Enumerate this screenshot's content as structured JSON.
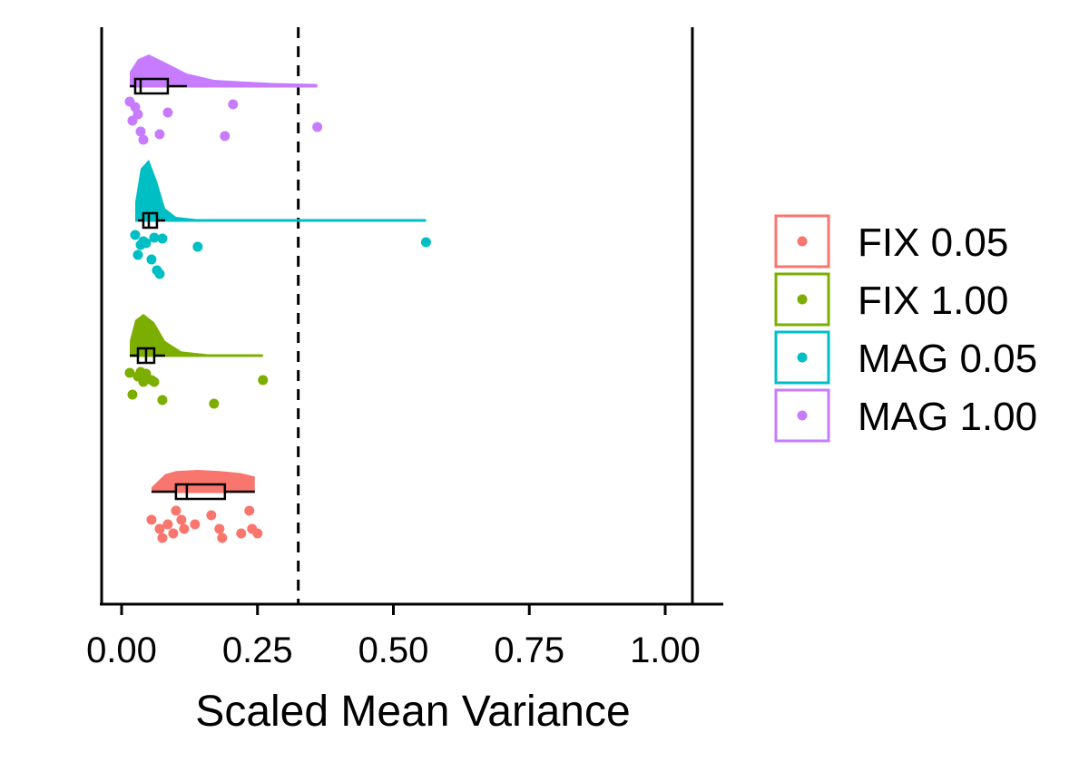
{
  "chart_data": {
    "type": "raincloud",
    "xlabel": "Scaled Mean Variance",
    "xlim": [
      -0.04,
      1.1
    ],
    "x_ticks": [
      0.0,
      0.25,
      0.5,
      0.75,
      1.0
    ],
    "x_tick_labels": [
      "0.00",
      "0.25",
      "0.50",
      "0.75",
      "1.00"
    ],
    "reference_lines": [
      {
        "x": 0.325,
        "style": "dashed",
        "color": "#000000"
      },
      {
        "x": 1.05,
        "style": "solid",
        "color": "#000000"
      }
    ],
    "legend_position": "right",
    "series": [
      {
        "name": "FIX 0.05",
        "color": "#F8766D",
        "points": [
          0.055,
          0.07,
          0.075,
          0.085,
          0.095,
          0.1,
          0.11,
          0.115,
          0.135,
          0.165,
          0.18,
          0.185,
          0.22,
          0.235,
          0.24,
          0.25
        ],
        "box": {
          "q1": 0.1,
          "median": 0.12,
          "q3": 0.19,
          "whisker_low": 0.055,
          "whisker_high": 0.245
        },
        "density": [
          [
            0.055,
            0.2
          ],
          [
            0.08,
            0.8
          ],
          [
            0.1,
            0.95
          ],
          [
            0.14,
            1.0
          ],
          [
            0.18,
            0.95
          ],
          [
            0.22,
            0.85
          ],
          [
            0.245,
            0.7
          ]
        ]
      },
      {
        "name": "FIX 1.00",
        "color": "#7CAE00",
        "points": [
          0.015,
          0.02,
          0.03,
          0.035,
          0.04,
          0.045,
          0.055,
          0.06,
          0.075,
          0.17,
          0.26
        ],
        "box": {
          "q1": 0.03,
          "median": 0.045,
          "q3": 0.06,
          "whisker_low": 0.015,
          "whisker_high": 0.08
        },
        "density": [
          [
            0.015,
            0.35
          ],
          [
            0.025,
            0.85
          ],
          [
            0.04,
            1.0
          ],
          [
            0.06,
            0.8
          ],
          [
            0.08,
            0.35
          ],
          [
            0.11,
            0.1
          ],
          [
            0.16,
            0.03
          ],
          [
            0.2,
            0.01
          ],
          [
            0.26,
            0.0
          ]
        ]
      },
      {
        "name": "MAG 0.05",
        "color": "#00BFC4",
        "points": [
          0.025,
          0.03,
          0.035,
          0.04,
          0.045,
          0.055,
          0.06,
          0.065,
          0.07,
          0.075,
          0.14,
          0.56
        ],
        "box": {
          "q1": 0.04,
          "median": 0.05,
          "q3": 0.065,
          "whisker_low": 0.03,
          "whisker_high": 0.08
        },
        "density": [
          [
            0.025,
            0.3
          ],
          [
            0.035,
            0.85
          ],
          [
            0.05,
            1.0
          ],
          [
            0.065,
            0.65
          ],
          [
            0.08,
            0.2
          ],
          [
            0.1,
            0.06
          ],
          [
            0.15,
            0.01
          ],
          [
            0.3,
            0.0
          ],
          [
            0.56,
            0.0
          ]
        ]
      },
      {
        "name": "MAG 1.00",
        "color": "#C77CFF",
        "points": [
          0.015,
          0.02,
          0.025,
          0.03,
          0.035,
          0.04,
          0.07,
          0.085,
          0.19,
          0.205,
          0.36
        ],
        "box": {
          "q1": 0.025,
          "median": 0.035,
          "q3": 0.085,
          "whisker_low": 0.015,
          "whisker_high": 0.12
        },
        "density": [
          [
            0.015,
            0.45
          ],
          [
            0.03,
            0.85
          ],
          [
            0.05,
            1.0
          ],
          [
            0.08,
            0.75
          ],
          [
            0.12,
            0.4
          ],
          [
            0.17,
            0.2
          ],
          [
            0.22,
            0.15
          ],
          [
            0.28,
            0.1
          ],
          [
            0.36,
            0.07
          ]
        ]
      }
    ]
  }
}
